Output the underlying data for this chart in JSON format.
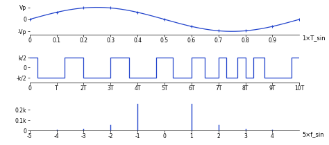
{
  "fig_width": 4.74,
  "fig_height": 2.09,
  "dpi": 100,
  "bg_color": "#ffffff",
  "line_color": "#2244cc",
  "subplot1": {
    "xlim": [
      0,
      1.0
    ],
    "ylim": [
      -1.25,
      1.25
    ],
    "xticks": [
      0,
      0.1,
      0.2,
      0.3,
      0.4,
      0.5,
      0.6,
      0.7,
      0.8,
      0.9
    ],
    "xlabel": "1×T_sin",
    "yticks_labels": [
      "Vp",
      "0",
      "-Vp"
    ],
    "ytick_vals": [
      1,
      0,
      -1
    ],
    "marker_x": [
      0,
      0.1,
      0.2,
      0.3,
      0.4,
      0.5,
      0.6,
      0.7,
      0.8,
      0.9,
      1.0
    ]
  },
  "subplot2": {
    "xlim": [
      0,
      10
    ],
    "ylim": [
      -1.5,
      1.5
    ],
    "xticks": [
      0,
      1,
      2,
      3,
      4,
      5,
      6,
      7,
      8,
      9,
      10
    ],
    "xtick_labels": [
      "0",
      "T",
      "2T",
      "3T",
      "4T",
      "5T",
      "6T",
      "7T",
      "8T",
      "9T",
      "10T"
    ],
    "ytick_vals": [
      1,
      0,
      -1
    ],
    "ytick_labels": [
      "k/2",
      "0",
      "-k/2"
    ],
    "pwm_x": [
      0,
      0.3,
      0.3,
      1.3,
      1.3,
      2.0,
      2.0,
      3.0,
      3.0,
      3.7,
      3.7,
      4.7,
      4.7,
      5.3,
      5.3,
      6.0,
      6.0,
      6.5,
      6.5,
      7.0,
      7.0,
      7.3,
      7.3,
      7.7,
      7.7,
      8.0,
      8.0,
      8.3,
      8.3,
      8.7,
      8.7,
      9.7,
      9.7,
      10.0
    ],
    "pwm_y": [
      1,
      1,
      -1,
      -1,
      1,
      1,
      -1,
      -1,
      1,
      1,
      -1,
      -1,
      1,
      1,
      -1,
      -1,
      1,
      1,
      -1,
      -1,
      1,
      1,
      -1,
      -1,
      1,
      1,
      -1,
      -1,
      1,
      1,
      -1,
      -1,
      1,
      1
    ]
  },
  "subplot3": {
    "xlim": [
      -5,
      5
    ],
    "ylim": [
      0,
      0.29
    ],
    "xticks": [
      -5,
      -4,
      -3,
      -2,
      -1,
      0,
      1,
      2,
      3,
      4
    ],
    "xlabel": "5×f_sin",
    "yticks": [
      0,
      0.1,
      0.2
    ],
    "ytick_labels": [
      "0",
      "0.1k",
      "0.2k"
    ],
    "spike_x": [
      -4,
      -3,
      -2,
      -1,
      1,
      2,
      3,
      4
    ],
    "spike_y": [
      0.005,
      0.012,
      0.052,
      0.255,
      0.255,
      0.052,
      0.012,
      0.005
    ]
  }
}
